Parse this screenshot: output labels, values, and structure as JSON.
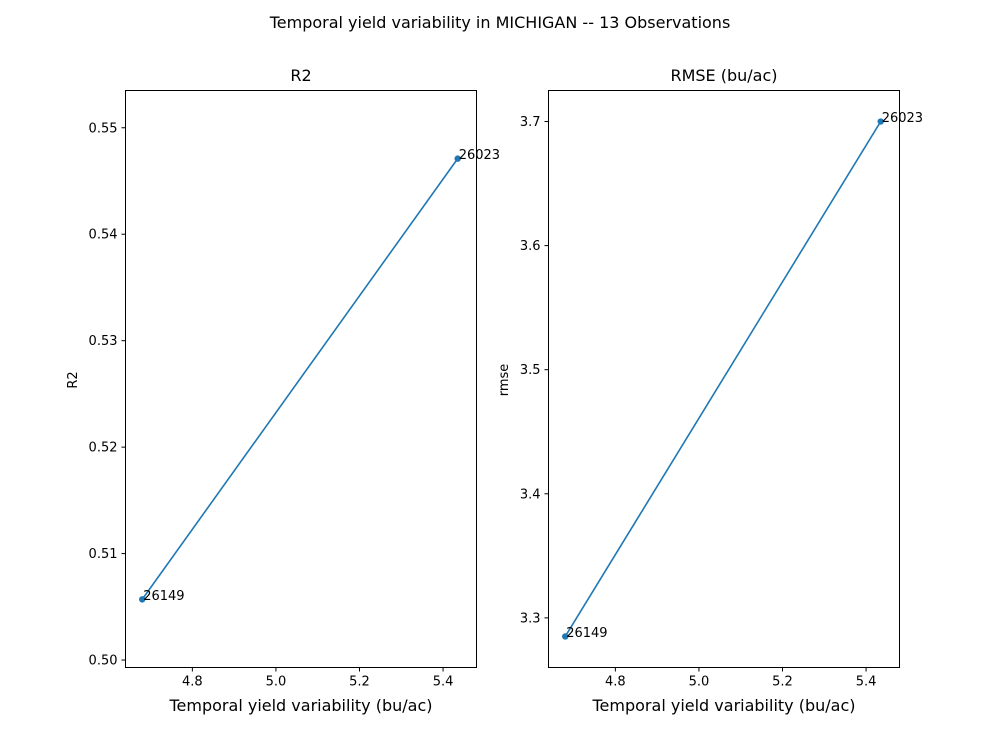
{
  "figure": {
    "title": "Temporal yield variability in MICHIGAN -- 13 Observations",
    "line_color": "#1f77b4"
  },
  "chart_data": [
    {
      "type": "line",
      "title": "R2",
      "xlabel": "Temporal yield variability (bu/ac)",
      "ylabel": "R2",
      "xlim": [
        4.64,
        5.48
      ],
      "ylim": [
        0.4993,
        0.5535
      ],
      "xticks": [
        "4.8",
        "5.0",
        "5.2",
        "5.4"
      ],
      "yticks": [
        "0.50",
        "0.51",
        "0.52",
        "0.53",
        "0.54",
        "0.55"
      ],
      "x": [
        4.68,
        5.435
      ],
      "y": [
        0.5057,
        0.5471
      ],
      "point_labels": [
        "26149",
        "26023"
      ],
      "grid": false
    },
    {
      "type": "line",
      "title": "RMSE (bu/ac)",
      "xlabel": "Temporal yield variability (bu/ac)",
      "ylabel": "rmse",
      "xlim": [
        4.64,
        5.48
      ],
      "ylim": [
        3.26,
        3.725
      ],
      "xticks": [
        "4.8",
        "5.0",
        "5.2",
        "5.4"
      ],
      "yticks": [
        "3.3",
        "3.4",
        "3.5",
        "3.6",
        "3.7"
      ],
      "x": [
        4.68,
        5.435
      ],
      "y": [
        3.285,
        3.7
      ],
      "point_labels": [
        "26149",
        "26023"
      ],
      "grid": false
    }
  ]
}
